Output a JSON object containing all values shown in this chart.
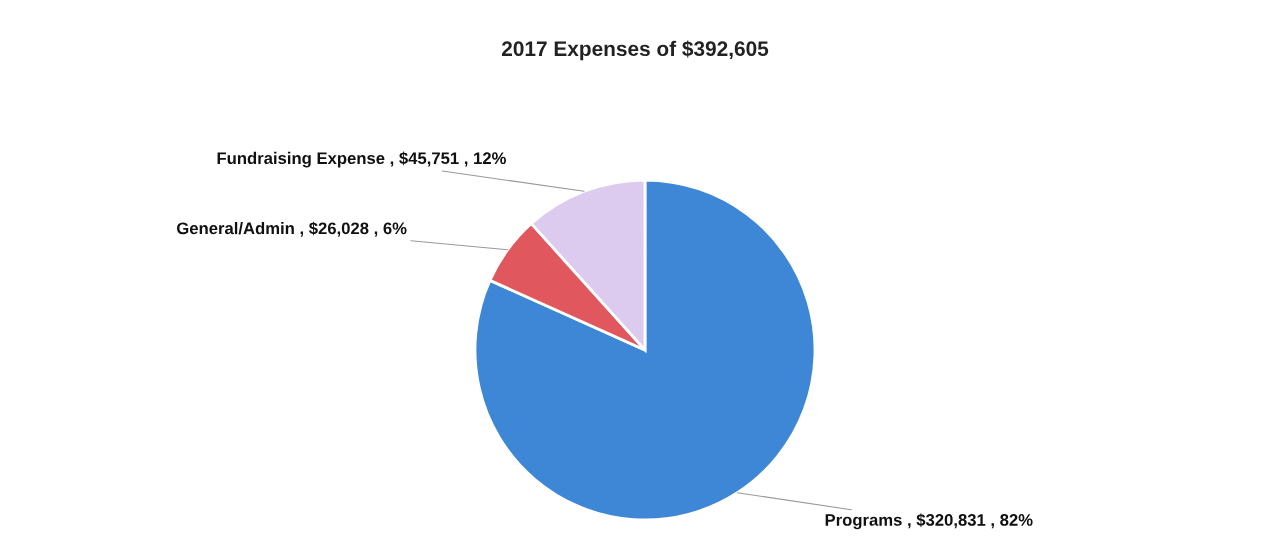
{
  "chart_data": {
    "type": "pie",
    "title": "2017 Expenses of $392,605",
    "categories": [
      "Programs",
      "General/Admin",
      "Fundraising Expense"
    ],
    "values": [
      320831,
      26028,
      45751
    ],
    "value_labels": [
      "$320,831 , 82%",
      "$26,028 , 6%",
      "$45,751 , 12%"
    ],
    "colors": [
      "#3d87d6",
      "#e0585e",
      "#dccbef"
    ],
    "legend": false
  }
}
